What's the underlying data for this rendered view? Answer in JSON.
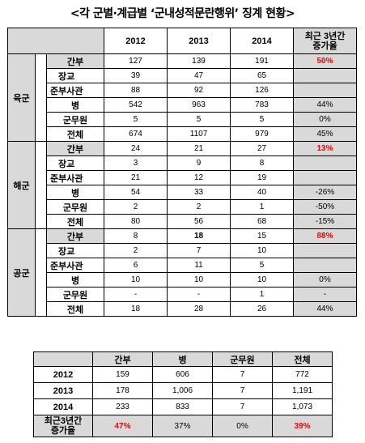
{
  "title": "<각 군별·계급별 ‘군내성적문란행위’ 징계 현황>",
  "t1": {
    "headers": [
      "2012",
      "2013",
      "2014"
    ],
    "rate_header_line1": "최근 3년간",
    "rate_header_line2": "증가율",
    "army": {
      "group": "육군",
      "rows": [
        {
          "label": "간부",
          "v": [
            "127",
            "139",
            "191"
          ],
          "rate": "50%"
        },
        {
          "label": "장교",
          "v": [
            "39",
            "47",
            "65"
          ],
          "rate": ""
        },
        {
          "label": "준부사관",
          "v": [
            "88",
            "92",
            "126"
          ],
          "rate": ""
        },
        {
          "label": "병",
          "v": [
            "542",
            "963",
            "783"
          ],
          "rate": "44%"
        },
        {
          "label": "군무원",
          "v": [
            "5",
            "5",
            "5"
          ],
          "rate": "0%"
        },
        {
          "label": "전체",
          "v": [
            "674",
            "1107",
            "979"
          ],
          "rate": "45%"
        }
      ]
    },
    "navy": {
      "group": "해군",
      "rows": [
        {
          "label": "간부",
          "v": [
            "24",
            "21",
            "27"
          ],
          "rate": "13%"
        },
        {
          "label": "장교",
          "v": [
            "3",
            "9",
            "8"
          ],
          "rate": ""
        },
        {
          "label": "준부사관",
          "v": [
            "21",
            "12",
            "19"
          ],
          "rate": ""
        },
        {
          "label": "병",
          "v": [
            "54",
            "33",
            "40"
          ],
          "rate": "-26%"
        },
        {
          "label": "군무원",
          "v": [
            "2",
            "2",
            "1"
          ],
          "rate": "-50%"
        },
        {
          "label": "전체",
          "v": [
            "80",
            "56",
            "68"
          ],
          "rate": "-15%"
        }
      ]
    },
    "airforce": {
      "group": "공군",
      "rows": [
        {
          "label": "간부",
          "v": [
            "8",
            "18",
            "15"
          ],
          "rate": "88%"
        },
        {
          "label": "장교",
          "v": [
            "2",
            "7",
            "10"
          ],
          "rate": ""
        },
        {
          "label": "준부사관",
          "v": [
            "6",
            "11",
            "5"
          ],
          "rate": ""
        },
        {
          "label": "병",
          "v": [
            "10",
            "10",
            "10"
          ],
          "rate": "0%"
        },
        {
          "label": "군무원",
          "v": [
            "-",
            "-",
            "1"
          ],
          "rate": "-"
        },
        {
          "label": "전체",
          "v": [
            "18",
            "28",
            "26"
          ],
          "rate": "44%"
        }
      ]
    }
  },
  "t2": {
    "headers": [
      "간부",
      "병",
      "군무원",
      "전체"
    ],
    "rows": [
      {
        "year": "2012",
        "v": [
          "159",
          "606",
          "7",
          "772"
        ]
      },
      {
        "year": "2013",
        "v": [
          "178",
          "1,006",
          "7",
          "1,191"
        ]
      },
      {
        "year": "2014",
        "v": [
          "233",
          "833",
          "7",
          "1,073"
        ]
      }
    ],
    "rate_label_line1": "최근3년간",
    "rate_label_line2": "증가율",
    "rate": [
      "47%",
      "37%",
      "0%",
      "39%"
    ]
  }
}
